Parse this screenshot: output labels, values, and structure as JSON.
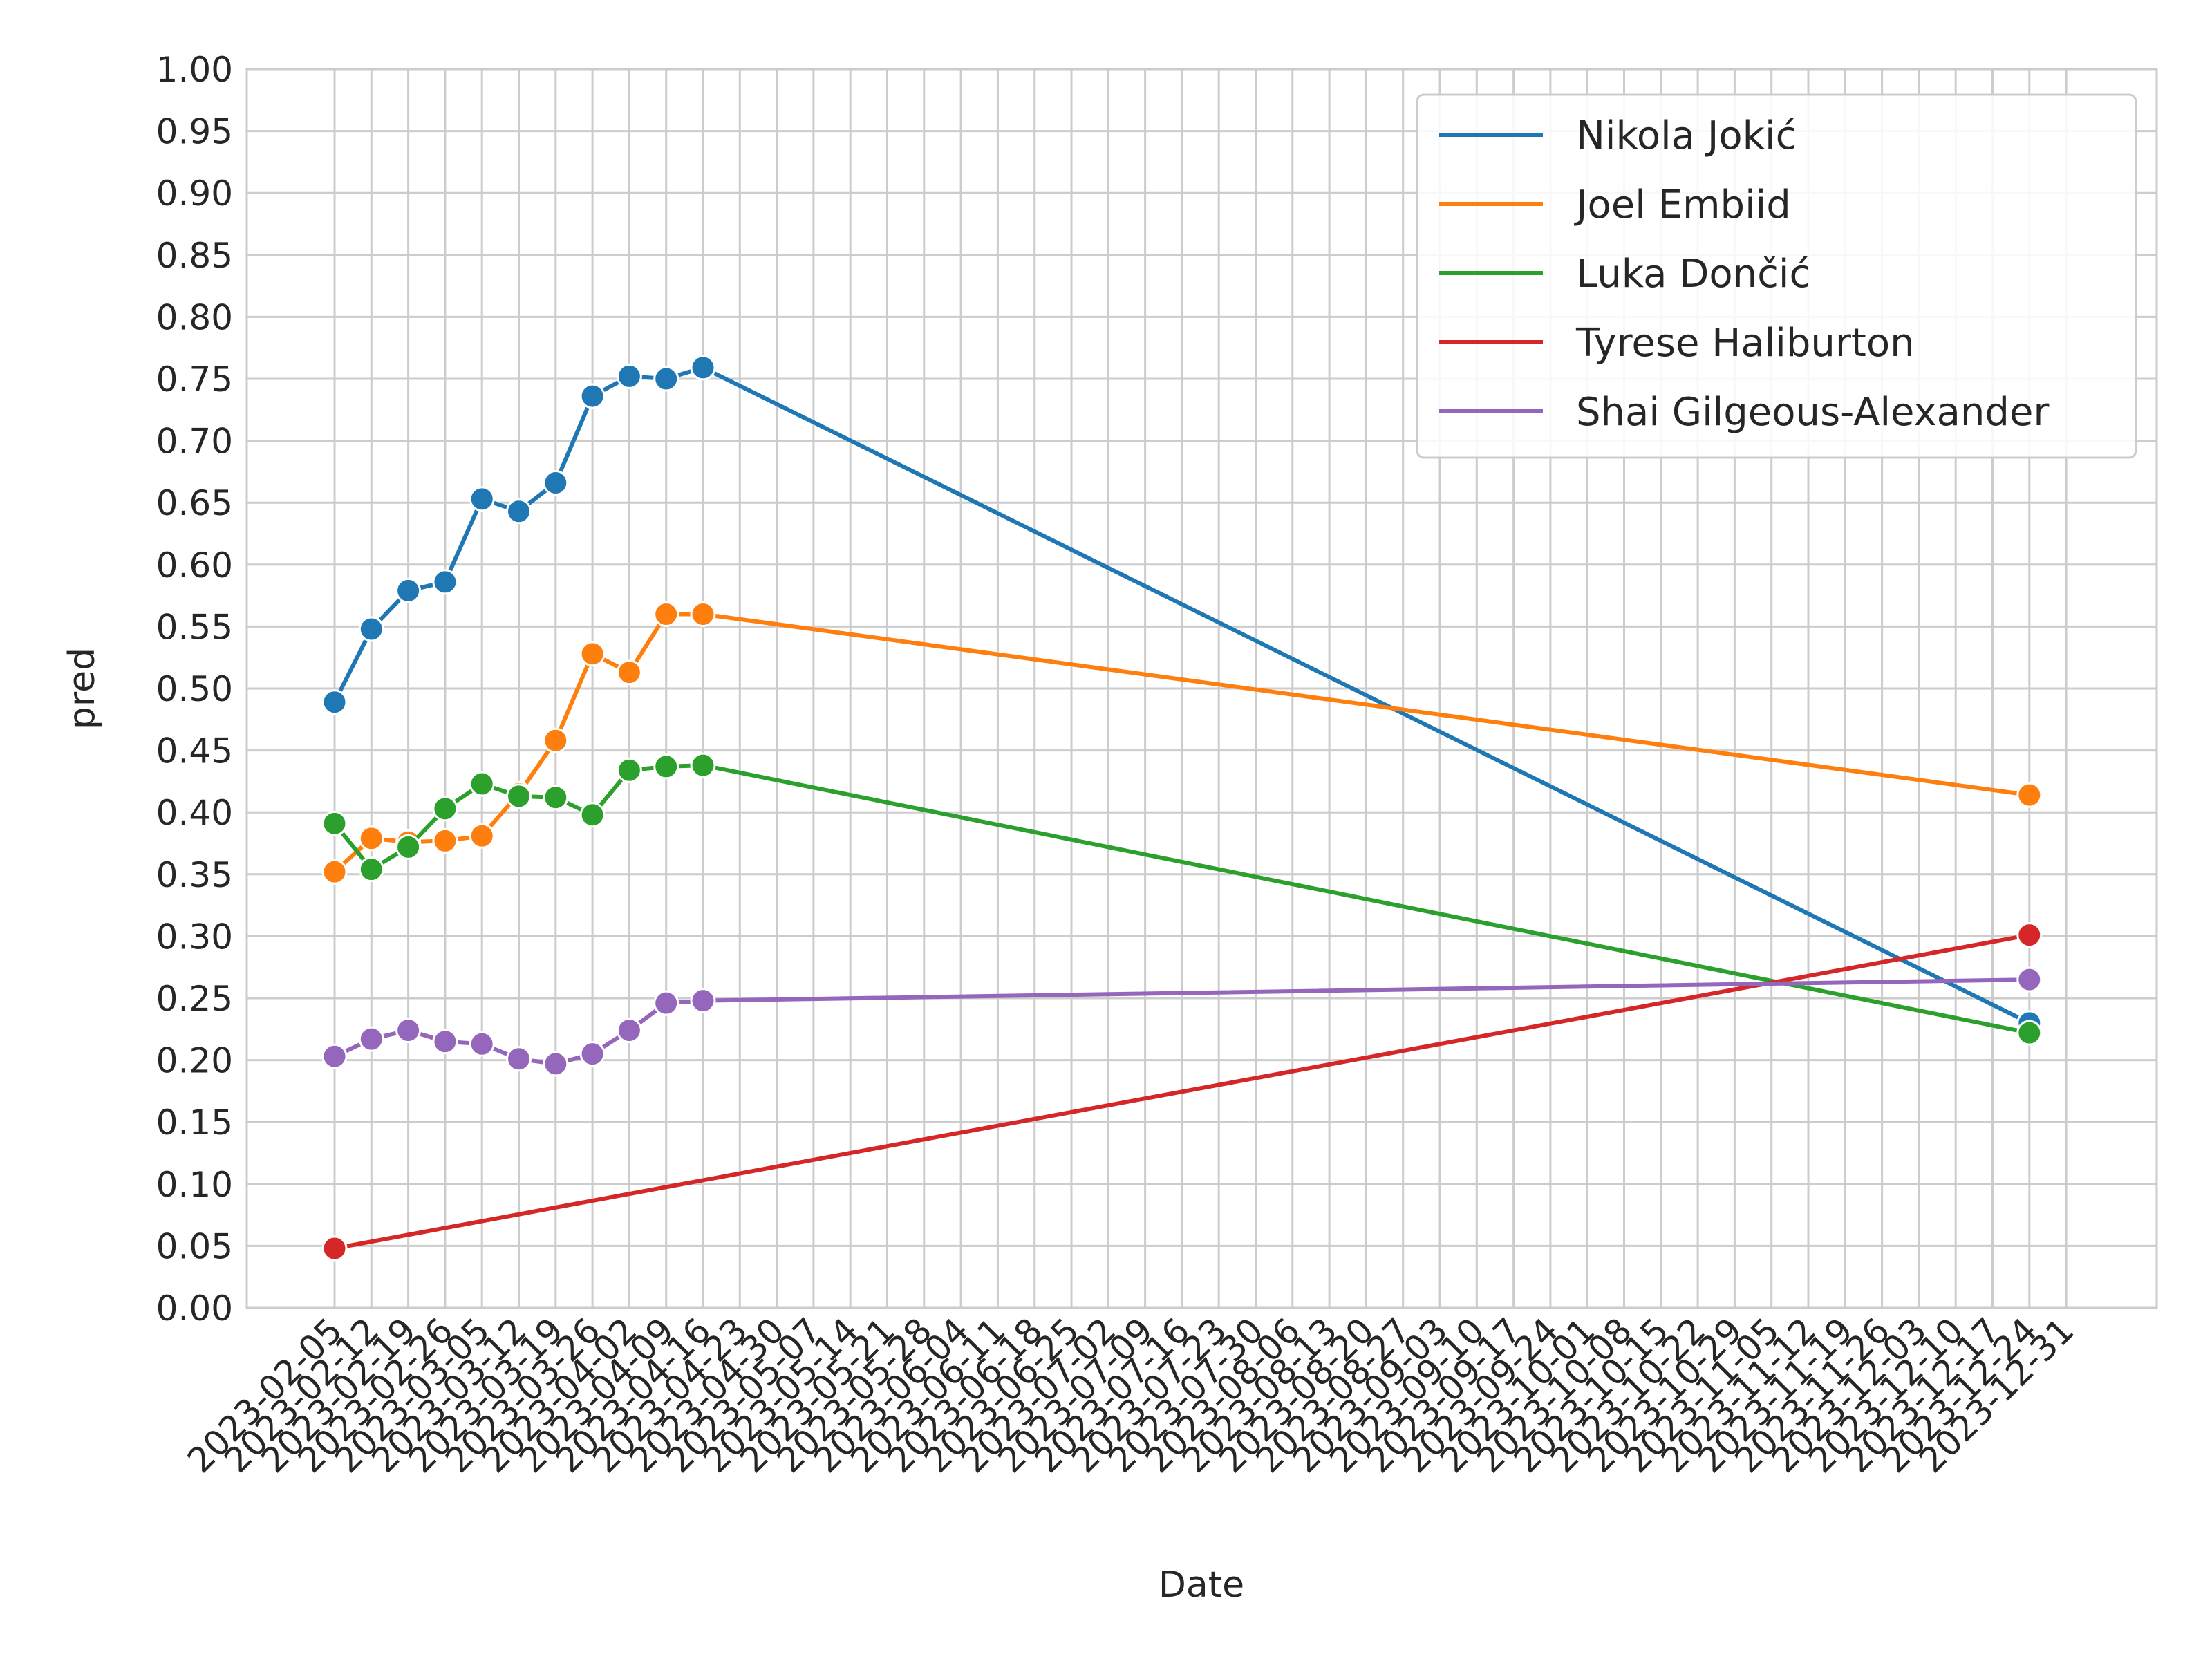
{
  "chart_data": {
    "type": "line",
    "title": "",
    "xlabel": "Date",
    "ylabel": "pred",
    "ylim": [
      0,
      1
    ],
    "yticks": [
      "0.00",
      "0.05",
      "0.10",
      "0.15",
      "0.20",
      "0.25",
      "0.30",
      "0.35",
      "0.40",
      "0.45",
      "0.50",
      "0.55",
      "0.60",
      "0.65",
      "0.70",
      "0.75",
      "0.80",
      "0.85",
      "0.90",
      "0.95",
      "1.00"
    ],
    "xticks": [
      "2023-02-05",
      "2023-02-12",
      "2023-02-19",
      "2023-02-26",
      "2023-03-05",
      "2023-03-12",
      "2023-03-19",
      "2023-03-26",
      "2023-04-02",
      "2023-04-09",
      "2023-04-16",
      "2023-04-23",
      "2023-04-30",
      "2023-05-07",
      "2023-05-14",
      "2023-05-21",
      "2023-05-28",
      "2023-06-04",
      "2023-06-11",
      "2023-06-18",
      "2023-06-25",
      "2023-07-02",
      "2023-07-09",
      "2023-07-16",
      "2023-07-23",
      "2023-07-30",
      "2023-08-06",
      "2023-08-13",
      "2023-08-20",
      "2023-08-27",
      "2023-09-03",
      "2023-09-10",
      "2023-09-17",
      "2023-09-24",
      "2023-10-01",
      "2023-10-08",
      "2023-10-15",
      "2023-10-22",
      "2023-10-29",
      "2023-11-05",
      "2023-11-12",
      "2023-11-19",
      "2023-11-26",
      "2023-12-03",
      "2023-12-10",
      "2023-12-17",
      "2023-12-24",
      "2023-12-31"
    ],
    "grid": true,
    "legend_position": "top-right",
    "series": [
      {
        "name": "Nikola Jokić",
        "color": "#1f77b4",
        "x": [
          "2023-02-05",
          "2023-02-12",
          "2023-02-19",
          "2023-02-26",
          "2023-03-05",
          "2023-03-12",
          "2023-03-19",
          "2023-03-26",
          "2023-04-02",
          "2023-04-09",
          "2023-04-16",
          "2023-12-24"
        ],
        "y": [
          0.489,
          0.548,
          0.579,
          0.586,
          0.653,
          0.643,
          0.666,
          0.736,
          0.752,
          0.75,
          0.759,
          0.23
        ]
      },
      {
        "name": "Joel Embiid",
        "color": "#ff7f0e",
        "x": [
          "2023-02-05",
          "2023-02-12",
          "2023-02-19",
          "2023-02-26",
          "2023-03-05",
          "2023-03-12",
          "2023-03-19",
          "2023-03-26",
          "2023-04-02",
          "2023-04-09",
          "2023-04-16",
          "2023-12-24"
        ],
        "y": [
          0.352,
          0.379,
          0.376,
          0.377,
          0.381,
          0.415,
          0.458,
          0.528,
          0.513,
          0.56,
          0.56,
          0.414
        ]
      },
      {
        "name": "Luka Dončić",
        "color": "#2ca02c",
        "x": [
          "2023-02-05",
          "2023-02-12",
          "2023-02-19",
          "2023-02-26",
          "2023-03-05",
          "2023-03-12",
          "2023-03-19",
          "2023-03-26",
          "2023-04-02",
          "2023-04-09",
          "2023-04-16",
          "2023-12-24"
        ],
        "y": [
          0.391,
          0.354,
          0.372,
          0.403,
          0.423,
          0.413,
          0.412,
          0.398,
          0.434,
          0.437,
          0.438,
          0.222
        ]
      },
      {
        "name": "Tyrese Haliburton",
        "color": "#d62728",
        "x": [
          "2023-02-05",
          "2023-12-24"
        ],
        "y": [
          0.048,
          0.301
        ]
      },
      {
        "name": "Shai Gilgeous-Alexander",
        "color": "#9467bd",
        "x": [
          "2023-02-05",
          "2023-02-12",
          "2023-02-19",
          "2023-02-26",
          "2023-03-05",
          "2023-03-12",
          "2023-03-19",
          "2023-03-26",
          "2023-04-02",
          "2023-04-09",
          "2023-04-16",
          "2023-12-24"
        ],
        "y": [
          0.203,
          0.217,
          0.224,
          0.215,
          0.213,
          0.201,
          0.197,
          0.205,
          0.224,
          0.246,
          0.248,
          0.265
        ]
      }
    ]
  }
}
